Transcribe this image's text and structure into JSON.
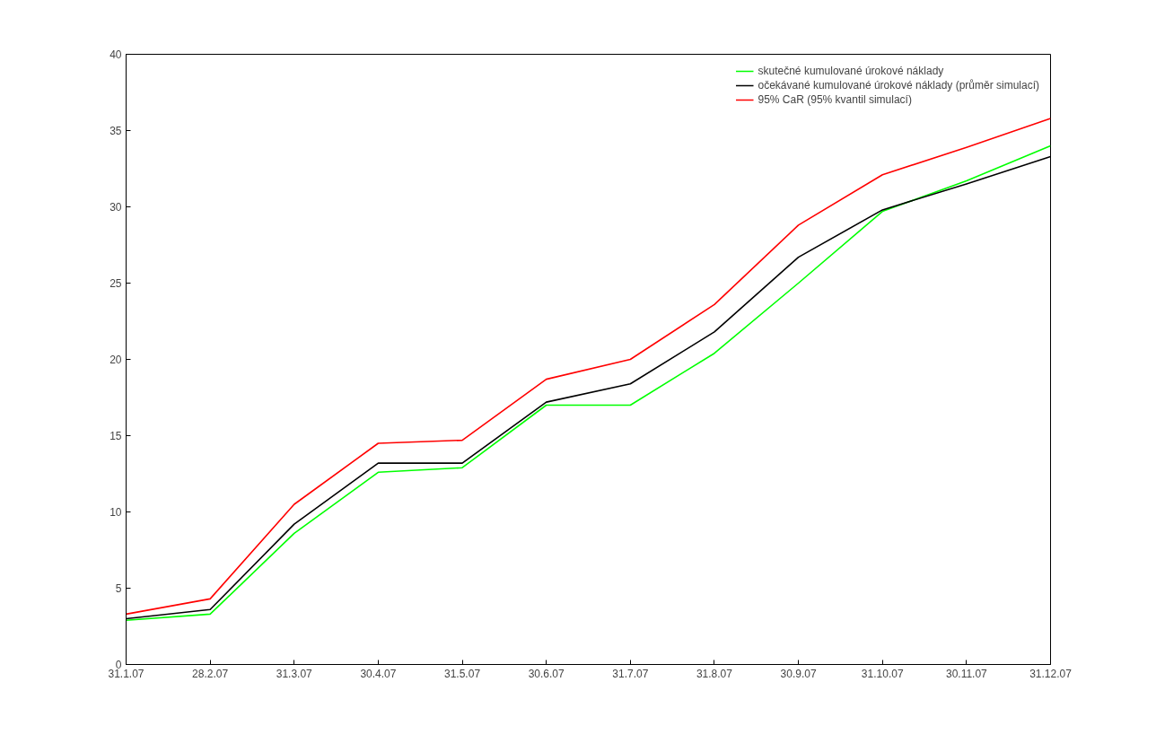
{
  "chart_data": {
    "type": "line",
    "categories": [
      "31.1.07",
      "28.2.07",
      "31.3.07",
      "30.4.07",
      "31.5.07",
      "30.6.07",
      "31.7.07",
      "31.8.07",
      "30.9.07",
      "31.10.07",
      "30.11.07",
      "31.12.07"
    ],
    "series": [
      {
        "name": "skutečné kumulované úrokové náklady",
        "color": "#00ff00",
        "values": [
          2.9,
          3.3,
          8.6,
          12.6,
          12.9,
          17.0,
          17.0,
          20.4,
          25.0,
          29.7,
          31.7,
          34.0
        ]
      },
      {
        "name": "očekávané kumulované úrokové náklady (průměr simulací)",
        "color": "#000000",
        "values": [
          3.0,
          3.6,
          9.2,
          13.2,
          13.2,
          17.2,
          18.4,
          21.8,
          26.7,
          29.8,
          31.5,
          33.3
        ]
      },
      {
        "name": "95% CaR (95% kvantil simulací)",
        "color": "#ff0000",
        "values": [
          3.3,
          4.3,
          10.5,
          14.5,
          14.7,
          18.7,
          20.0,
          23.6,
          28.8,
          32.1,
          33.9,
          35.8
        ]
      }
    ],
    "ylim": [
      0,
      40
    ],
    "yticks": [
      0,
      5,
      10,
      15,
      20,
      25,
      30,
      35,
      40
    ],
    "grid": false,
    "legend": "top right",
    "marker": "none",
    "line_style": "solid"
  }
}
